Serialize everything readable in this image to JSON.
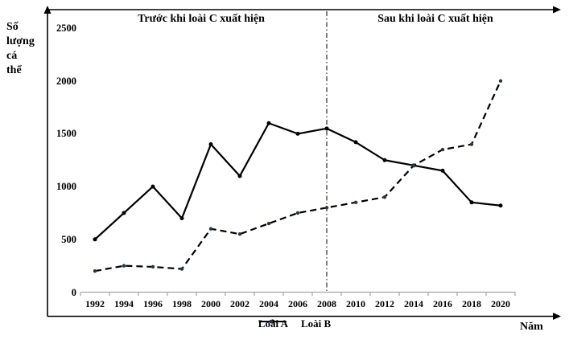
{
  "figure": {
    "y_axis_label_lines": [
      "Số",
      "lượng",
      "cá",
      "thể"
    ],
    "x_axis_label": "Năm",
    "annotation_before": "Trước khi loài C xuất hiện",
    "annotation_after": "Sau khi loài C xuất hiện"
  },
  "chart_data": {
    "type": "line",
    "title": "",
    "xlabel": "Năm",
    "ylabel": "Số lượng cá thể",
    "categories": [
      1992,
      1994,
      1996,
      1998,
      2000,
      2002,
      2004,
      2006,
      2008,
      2010,
      2012,
      2014,
      2016,
      2018,
      2020
    ],
    "series": [
      {
        "name": "Loài A",
        "style": "solid",
        "color": "#000000",
        "marker_color": "#000000",
        "values": [
          500,
          750,
          1000,
          700,
          1400,
          1100,
          1600,
          1500,
          1550,
          1420,
          1250,
          1200,
          1150,
          850,
          820
        ]
      },
      {
        "name": "Loài B",
        "style": "dashed",
        "color": "#000000",
        "marker_color": "#26364a",
        "values": [
          200,
          250,
          240,
          220,
          600,
          550,
          650,
          750,
          800,
          850,
          900,
          1200,
          1350,
          1400,
          2000
        ]
      }
    ],
    "y_ticks": [
      0,
      500,
      1000,
      1500,
      2000,
      2500
    ],
    "ylim": [
      0,
      2700
    ],
    "divider_x": 2008,
    "annotations": [
      "Trước khi loài C xuất hiện",
      "Sau khi loài C xuất hiện"
    ],
    "grid": false,
    "legend_position": "bottom",
    "axis_color": "#000000",
    "baseline_color": "#a6a6a6"
  }
}
